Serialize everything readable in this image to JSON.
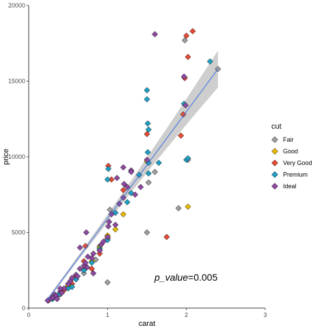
{
  "chart_data": {
    "type": "scatter",
    "xlabel": "carat",
    "ylabel": "price",
    "xlim": [
      0,
      3
    ],
    "ylim": [
      0,
      20000
    ],
    "x_ticks": [
      0,
      1,
      2,
      3
    ],
    "y_ticks": [
      0,
      5000,
      10000,
      15000,
      20000
    ],
    "grid": false,
    "legend": {
      "title": "cut",
      "placement": "right",
      "entries": [
        "Fair",
        "Good",
        "Very Good",
        "Premium",
        "Ideal"
      ]
    },
    "colors": {
      "Fair": "#9e9e9e",
      "Good": "#e7b800",
      "Very Good": "#e64b35",
      "Premium": "#1fa0c4",
      "Ideal": "#8e4aa0",
      "trend": "#3b6fe0",
      "ribbon": "#bdbdbd"
    },
    "annotation": {
      "italic_part": "p_value",
      "rest": "=0.005"
    },
    "trend_line": {
      "x": [
        0.23,
        2.4
      ],
      "y": [
        500,
        15800
      ]
    },
    "series": [
      {
        "name": "Fair",
        "points": [
          [
            0.5,
            1400
          ],
          [
            0.7,
            2300
          ],
          [
            0.85,
            3200
          ],
          [
            0.9,
            4100
          ],
          [
            1.0,
            1700
          ],
          [
            1.5,
            5000
          ],
          [
            1.52,
            8300
          ],
          [
            1.6,
            9000
          ],
          [
            2.02,
            9800
          ],
          [
            1.9,
            6600
          ],
          [
            2.4,
            15800
          ],
          [
            1.98,
            17700
          ],
          [
            0.4,
            900
          ],
          [
            0.3,
            600
          ],
          [
            1.03,
            6500
          ]
        ]
      },
      {
        "name": "Good",
        "points": [
          [
            0.3,
            700
          ],
          [
            0.5,
            1500
          ],
          [
            0.7,
            2600
          ],
          [
            0.9,
            4000
          ],
          [
            1.0,
            4800
          ],
          [
            1.2,
            6200
          ],
          [
            1.5,
            9700
          ],
          [
            2.02,
            6700
          ],
          [
            0.6,
            1900
          ],
          [
            0.8,
            3100
          ],
          [
            1.1,
            5200
          ],
          [
            0.35,
            800
          ]
        ]
      },
      {
        "name": "Very Good",
        "points": [
          [
            0.25,
            500
          ],
          [
            0.32,
            700
          ],
          [
            0.4,
            1000
          ],
          [
            0.55,
            1600
          ],
          [
            0.7,
            3100
          ],
          [
            0.72,
            4100
          ],
          [
            0.9,
            3600
          ],
          [
            1.0,
            4600
          ],
          [
            1.01,
            9400
          ],
          [
            1.05,
            8500
          ],
          [
            1.2,
            7800
          ],
          [
            1.5,
            11500
          ],
          [
            1.75,
            4700
          ],
          [
            2.0,
            18000
          ],
          [
            2.08,
            18300
          ],
          [
            2.02,
            16600
          ],
          [
            1.98,
            15200
          ],
          [
            1.96,
            12800
          ],
          [
            1.93,
            11400
          ],
          [
            0.6,
            2100
          ],
          [
            0.8,
            2600
          ],
          [
            0.45,
            1200
          ]
        ]
      },
      {
        "name": "Premium",
        "points": [
          [
            0.3,
            600
          ],
          [
            0.38,
            900
          ],
          [
            0.5,
            1300
          ],
          [
            0.6,
            1900
          ],
          [
            0.7,
            2500
          ],
          [
            0.8,
            3000
          ],
          [
            0.9,
            3900
          ],
          [
            1.0,
            4500
          ],
          [
            1.0,
            8500
          ],
          [
            1.01,
            9200
          ],
          [
            1.1,
            6300
          ],
          [
            1.3,
            7600
          ],
          [
            1.52,
            9600
          ],
          [
            1.5,
            14400
          ],
          [
            1.5,
            13800
          ],
          [
            1.51,
            12200
          ],
          [
            1.52,
            11800
          ],
          [
            1.51,
            10300
          ],
          [
            1.65,
            9600
          ],
          [
            2.0,
            9800
          ],
          [
            2.02,
            9900
          ],
          [
            1.97,
            13500
          ],
          [
            2.3,
            16300
          ],
          [
            1.52,
            8900
          ],
          [
            1.4,
            8800
          ],
          [
            0.55,
            1400
          ],
          [
            1.25,
            7000
          ]
        ]
      },
      {
        "name": "Ideal",
        "points": [
          [
            0.24,
            500
          ],
          [
            0.28,
            650
          ],
          [
            0.31,
            700
          ],
          [
            0.33,
            900
          ],
          [
            0.35,
            800
          ],
          [
            0.4,
            1100
          ],
          [
            0.42,
            1000
          ],
          [
            0.45,
            1300
          ],
          [
            0.5,
            1600
          ],
          [
            0.53,
            1800
          ],
          [
            0.55,
            2000
          ],
          [
            0.6,
            2200
          ],
          [
            0.62,
            2100
          ],
          [
            0.65,
            2600
          ],
          [
            0.7,
            2800
          ],
          [
            0.72,
            3000
          ],
          [
            0.74,
            2700
          ],
          [
            0.75,
            3400
          ],
          [
            0.8,
            3300
          ],
          [
            0.82,
            3600
          ],
          [
            0.9,
            3800
          ],
          [
            0.92,
            4200
          ],
          [
            0.95,
            4400
          ],
          [
            1.0,
            4700
          ],
          [
            1.01,
            5400
          ],
          [
            1.02,
            5700
          ],
          [
            1.05,
            6200
          ],
          [
            1.1,
            5500
          ],
          [
            1.15,
            6900
          ],
          [
            1.2,
            7300
          ],
          [
            1.2,
            9300
          ],
          [
            1.21,
            8200
          ],
          [
            1.25,
            8000
          ],
          [
            1.3,
            9100
          ],
          [
            1.35,
            7500
          ],
          [
            1.42,
            8000
          ],
          [
            1.5,
            9800
          ],
          [
            1.6,
            18100
          ],
          [
            1.97,
            15300
          ],
          [
            1.99,
            13400
          ],
          [
            0.73,
            5000
          ],
          [
            0.65,
            4000
          ],
          [
            0.82,
            2300
          ],
          [
            0.4,
            1300
          ],
          [
            0.36,
            600
          ],
          [
            1.12,
            8600
          ],
          [
            1.3,
            9000
          ]
        ]
      }
    ]
  }
}
